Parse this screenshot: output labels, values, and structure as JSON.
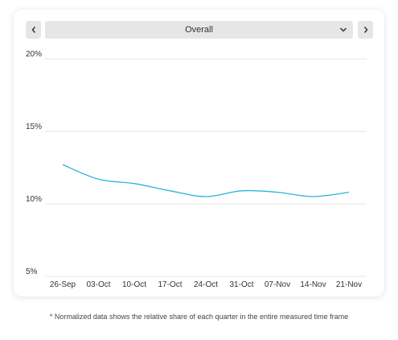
{
  "selector": {
    "selected": "Overall",
    "prev_icon": "chevron-left-icon",
    "next_icon": "chevron-right-icon",
    "dropdown_icon": "chevron-down-icon"
  },
  "chart_data": {
    "type": "line",
    "title": "",
    "xlabel": "",
    "ylabel": "",
    "categories": [
      "26-Sep",
      "03-Oct",
      "10-Oct",
      "17-Oct",
      "24-Oct",
      "31-Oct",
      "07-Nov",
      "14-Nov",
      "21-Nov"
    ],
    "y_ticks": [
      20,
      15,
      10,
      5
    ],
    "y_tick_labels": [
      "20%",
      "15%",
      "10%",
      "5%"
    ],
    "ylim": [
      5,
      20
    ],
    "grid": true,
    "line_color": "#29b6d6",
    "series": [
      {
        "values": [
          12.7,
          11.7,
          11.4,
          10.9,
          10.5,
          10.9,
          10.8,
          10.5,
          10.8
        ]
      }
    ]
  },
  "footnote": "* Normalized data shows the relative share of each quarter in the entire measured time frame"
}
